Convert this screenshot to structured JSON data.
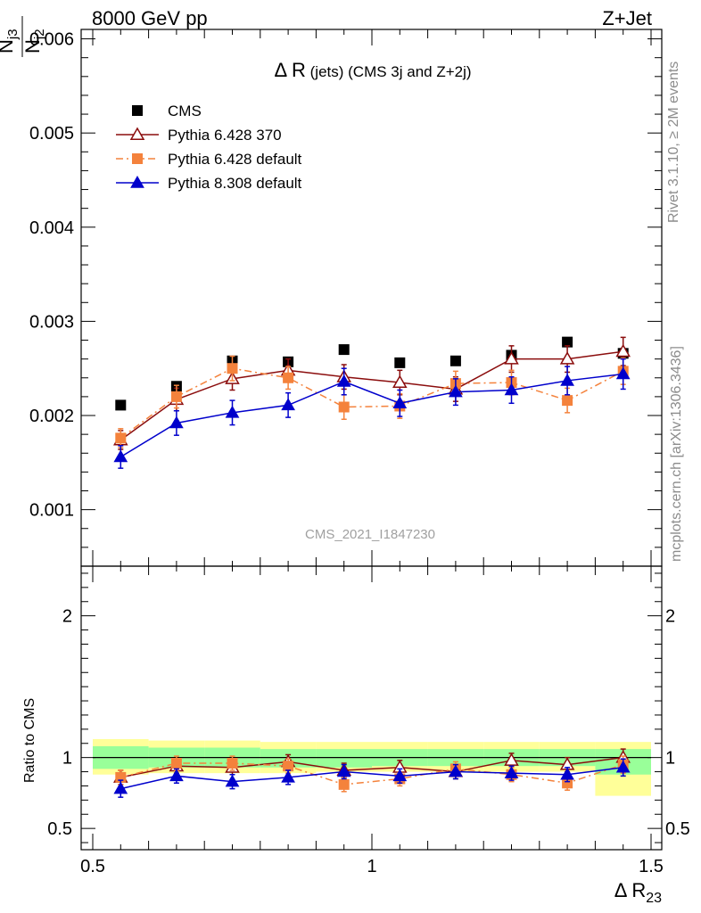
{
  "header": {
    "energy_label": "8000 GeV pp",
    "process_label": "Z+Jet"
  },
  "side": {
    "rivet_label": "Rivet 3.1.10, ≥ 2M events",
    "mcplots_label": "mcplots.cern.ch [arXiv:1306.3436]"
  },
  "top_panel": {
    "title_main": "Δ R",
    "title_sub": " (jets) (CMS 3j and Z+2j)",
    "watermark": "CMS_2021_I1847230",
    "ylabel_num": "N",
    "ylabel_num_sub": "j3",
    "ylabel_den": "N",
    "ylabel_den_sub": "j2",
    "ylim": [
      0.0004,
      0.0061
    ],
    "y_tick_labels": [
      "0.001",
      "0.002",
      "0.003",
      "0.004",
      "0.005",
      "0.006"
    ]
  },
  "bottom_panel": {
    "ylabel": "Ratio to CMS",
    "ylim": [
      0.35,
      2.35
    ],
    "y_tick_labels_left": [
      "0.5",
      "1",
      "2"
    ],
    "y_tick_labels_right": [
      "0.5",
      "1",
      "2"
    ]
  },
  "x_axis": {
    "label_main": "Δ R",
    "label_sub": "23",
    "xlim": [
      0.5,
      1.5
    ],
    "tick_labels": [
      "0.5",
      "1",
      "1.5"
    ]
  },
  "legend": {
    "placement": "top-left",
    "entries": [
      {
        "label": "CMS",
        "color": "#000000",
        "marker": "square",
        "line": "none"
      },
      {
        "label": "Pythia 6.428 370",
        "color": "#8b0d0d",
        "marker": "open-triangle",
        "line": "solid"
      },
      {
        "label": "Pythia 6.428 default",
        "color": "#f4823c",
        "marker": "square",
        "line": "dash-dot"
      },
      {
        "label": "Pythia 8.308 default",
        "color": "#0000cc",
        "marker": "triangle",
        "line": "solid"
      }
    ]
  },
  "chart_data": [
    {
      "type": "scatter",
      "panel": "main",
      "x": [
        0.55,
        0.65,
        0.75,
        0.85,
        0.95,
        1.05,
        1.15,
        1.25,
        1.35,
        1.45
      ],
      "series": [
        {
          "name": "CMS",
          "values": [
            0.00211,
            0.00231,
            0.00258,
            0.00257,
            0.0027,
            0.00256,
            0.00258,
            0.00264,
            0.00278,
            0.00266
          ]
        },
        {
          "name": "Pythia 6.428 370",
          "values": [
            0.00174,
            0.00217,
            0.00239,
            0.00248,
            0.00241,
            0.00235,
            0.00228,
            0.0026,
            0.0026,
            0.00268
          ],
          "err": [
            0.0001,
            0.00012,
            0.00012,
            0.00012,
            0.00013,
            0.00013,
            0.00013,
            0.00014,
            0.00014,
            0.00015
          ]
        },
        {
          "name": "Pythia 6.428 default",
          "values": [
            0.00176,
            0.0022,
            0.0025,
            0.0024,
            0.00209,
            0.0021,
            0.00234,
            0.00235,
            0.00216,
            0.00247
          ],
          "err": [
            0.0001,
            0.00012,
            0.00013,
            0.00012,
            0.00013,
            0.00013,
            0.00013,
            0.00013,
            0.00013,
            0.00014
          ]
        },
        {
          "name": "Pythia 8.308 default",
          "values": [
            0.00156,
            0.00192,
            0.00203,
            0.00211,
            0.00236,
            0.00213,
            0.00225,
            0.00227,
            0.00237,
            0.00244
          ],
          "err": [
            0.00012,
            0.00013,
            0.00013,
            0.00013,
            0.00014,
            0.00014,
            0.00014,
            0.00014,
            0.00015,
            0.00016
          ]
        }
      ]
    },
    {
      "type": "scatter",
      "panel": "ratio",
      "x": [
        0.55,
        0.65,
        0.75,
        0.85,
        0.95,
        1.05,
        1.15,
        1.25,
        1.35,
        1.45
      ],
      "reference": 1.0,
      "bands": {
        "edges": [
          0.5,
          0.6,
          0.7,
          0.8,
          0.9,
          1.0,
          1.1,
          1.2,
          1.3,
          1.4,
          1.5
        ],
        "green_low": [
          0.92,
          0.93,
          0.93,
          0.93,
          0.93,
          0.94,
          0.94,
          0.94,
          0.94,
          0.88
        ],
        "green_high": [
          1.08,
          1.07,
          1.07,
          1.06,
          1.06,
          1.06,
          1.06,
          1.06,
          1.06,
          1.06
        ],
        "yellow_low": [
          0.88,
          0.89,
          0.89,
          0.89,
          0.9,
          0.9,
          0.9,
          0.9,
          0.9,
          0.73
        ],
        "yellow_high": [
          1.13,
          1.12,
          1.12,
          1.11,
          1.11,
          1.11,
          1.11,
          1.11,
          1.11,
          1.11
        ]
      },
      "series": [
        {
          "name": "Pythia 6.428 370",
          "values": [
            0.86,
            0.94,
            0.93,
            0.97,
            0.91,
            0.93,
            0.9,
            0.98,
            0.95,
            1.0
          ],
          "err": [
            0.05,
            0.05,
            0.05,
            0.05,
            0.05,
            0.05,
            0.05,
            0.05,
            0.05,
            0.06
          ]
        },
        {
          "name": "Pythia 6.428 default",
          "values": [
            0.86,
            0.96,
            0.96,
            0.94,
            0.81,
            0.85,
            0.92,
            0.88,
            0.82,
            0.95
          ],
          "err": [
            0.05,
            0.05,
            0.05,
            0.05,
            0.05,
            0.05,
            0.05,
            0.05,
            0.05,
            0.06
          ]
        },
        {
          "name": "Pythia 8.308 default",
          "values": [
            0.78,
            0.87,
            0.83,
            0.86,
            0.9,
            0.87,
            0.9,
            0.89,
            0.88,
            0.93
          ],
          "err": [
            0.06,
            0.05,
            0.05,
            0.05,
            0.05,
            0.05,
            0.05,
            0.05,
            0.05,
            0.06
          ]
        }
      ]
    }
  ]
}
